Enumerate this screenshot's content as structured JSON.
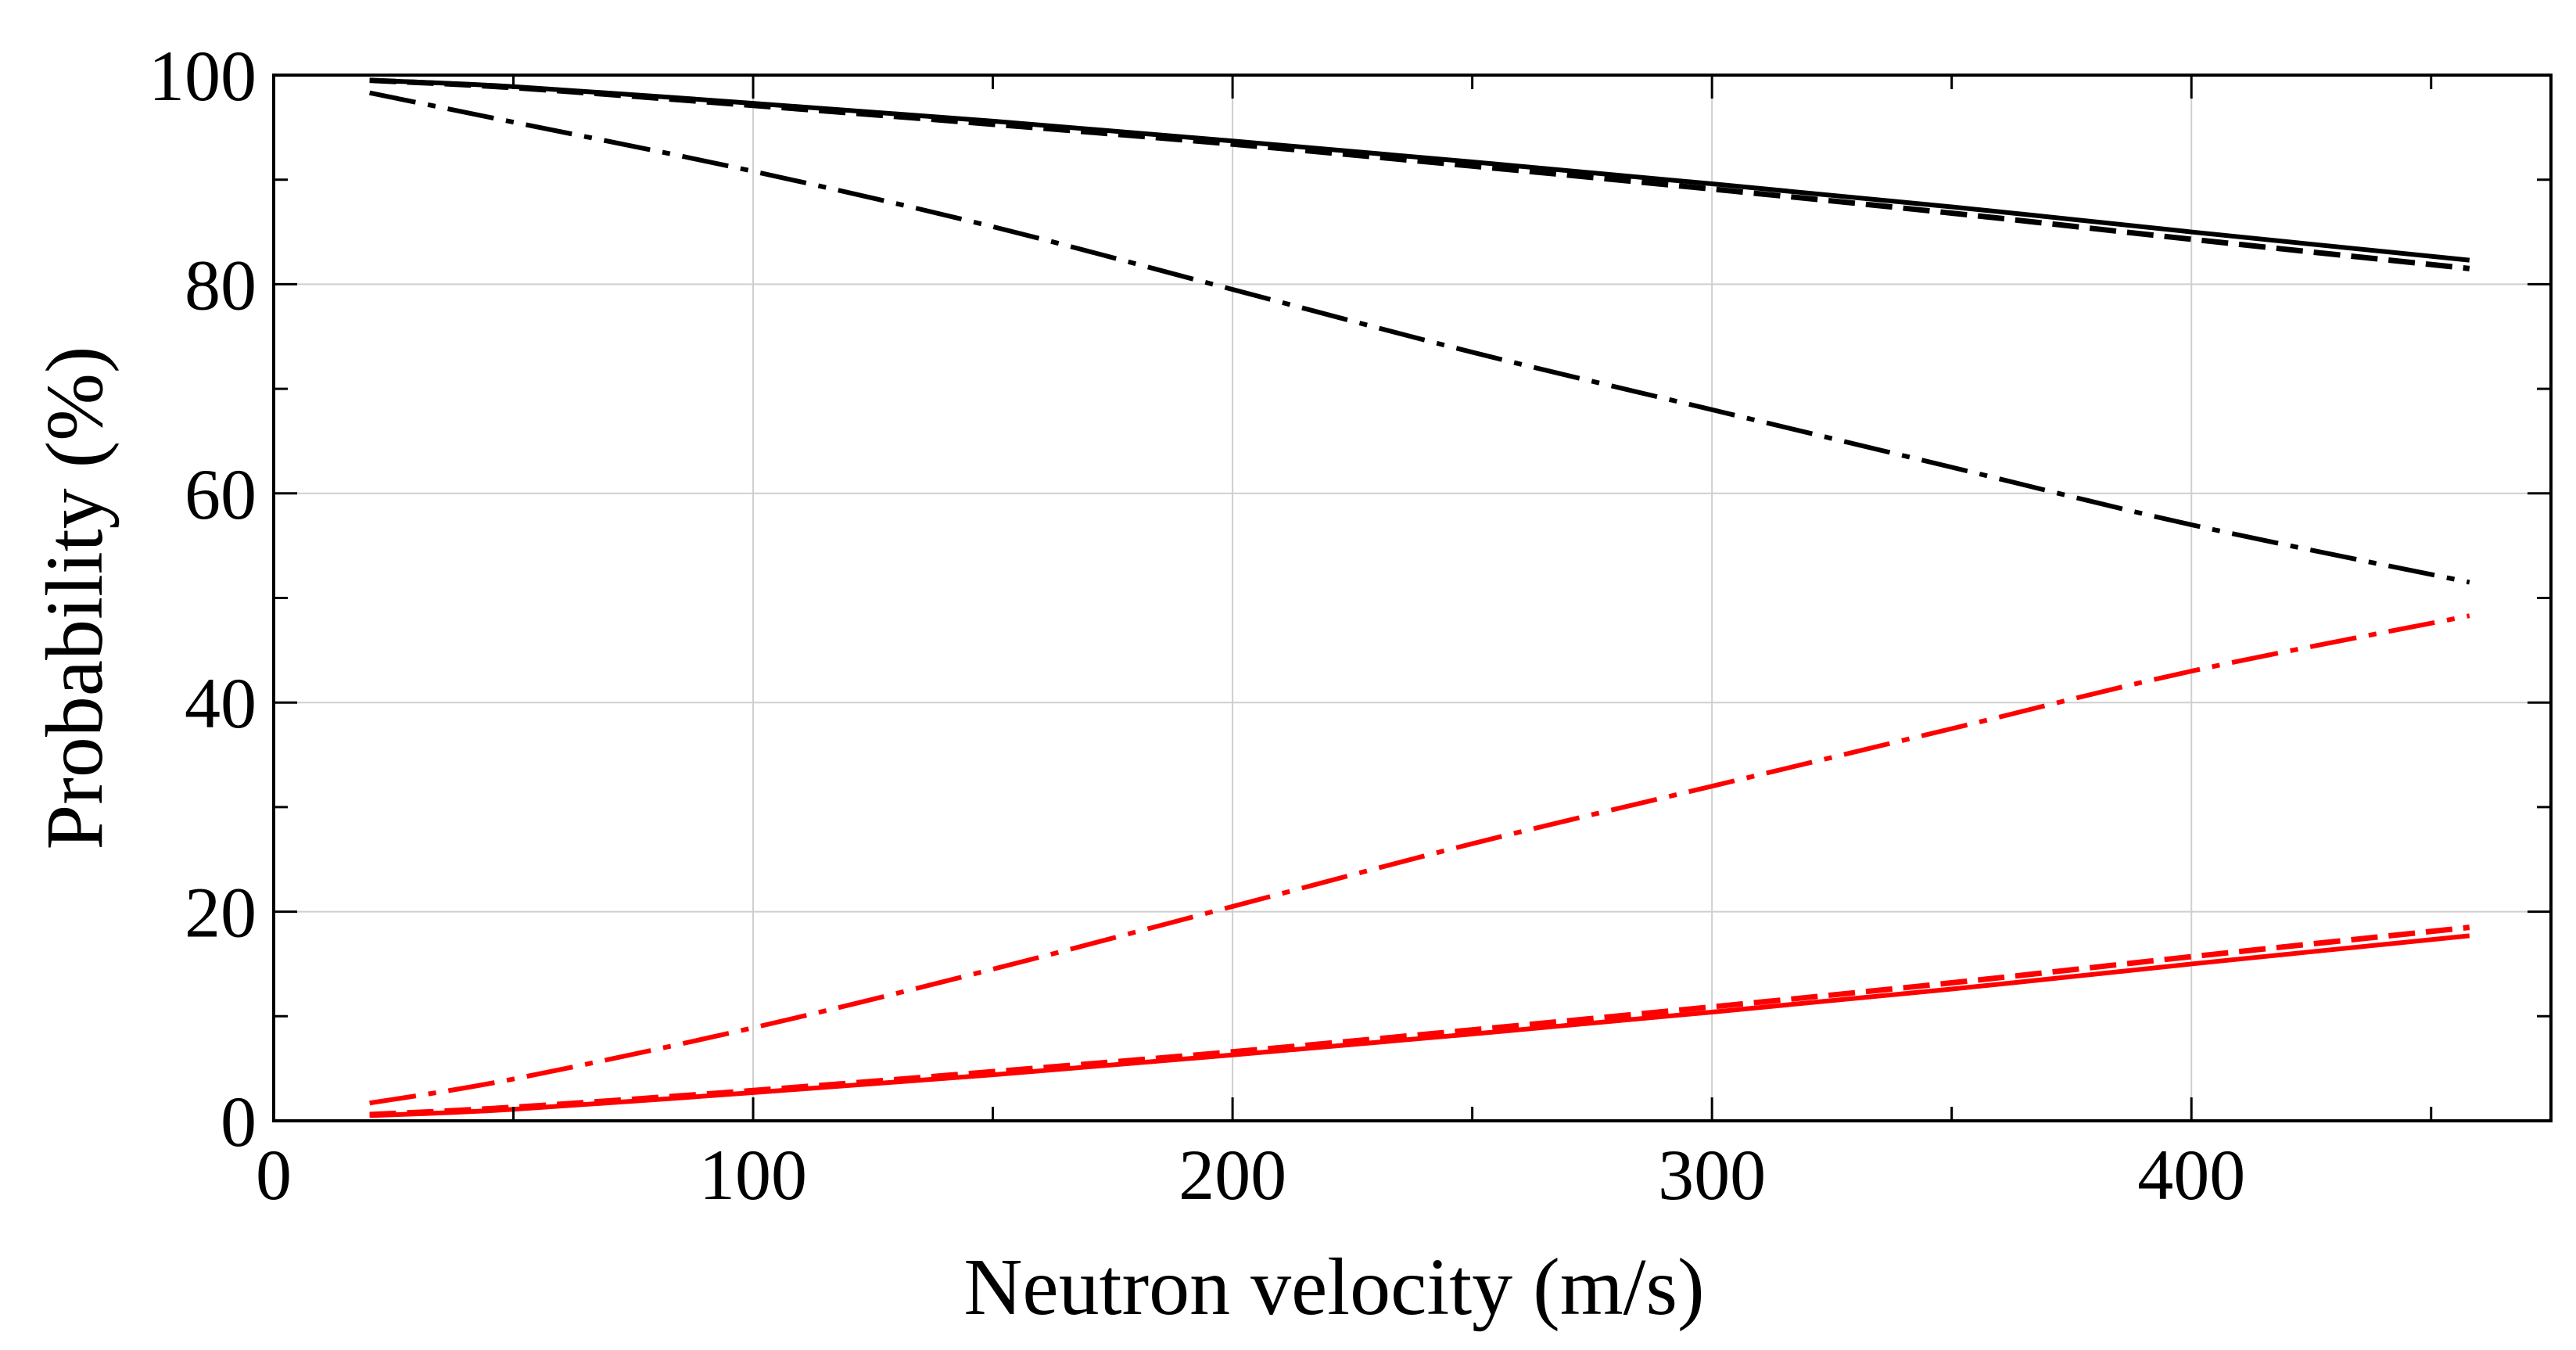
{
  "chart_data": {
    "type": "line",
    "title": "",
    "xlabel": "Neutron velocity (m/s)",
    "ylabel": "Probability (%)",
    "xlim": [
      0,
      475
    ],
    "ylim": [
      0,
      100
    ],
    "xticks": [
      0,
      100,
      200,
      300,
      400
    ],
    "yticks": [
      0,
      20,
      40,
      60,
      80,
      100
    ],
    "xtick_labels": [
      "0",
      "100",
      "200",
      "300",
      "400"
    ],
    "ytick_labels": [
      "0",
      "20",
      "40",
      "60",
      "80",
      "100"
    ],
    "grid": true,
    "series": [
      {
        "name": "black-solid",
        "color": "#000000",
        "dash": "solid",
        "x": [
          20,
          50,
          100,
          150,
          200,
          250,
          300,
          350,
          400,
          458
        ],
        "y": [
          99.5,
          98.9,
          97.3,
          95.6,
          93.7,
          91.7,
          89.6,
          87.4,
          85.0,
          82.3
        ]
      },
      {
        "name": "black-dashed",
        "color": "#000000",
        "dash": "dashed",
        "x": [
          20,
          50,
          100,
          150,
          200,
          250,
          300,
          350,
          400,
          458
        ],
        "y": [
          99.5,
          98.8,
          97.1,
          95.3,
          93.4,
          91.3,
          89.1,
          86.8,
          84.3,
          81.5
        ]
      },
      {
        "name": "black-dashdot",
        "color": "#000000",
        "dash": "dashdot",
        "x": [
          20,
          50,
          100,
          150,
          200,
          250,
          300,
          350,
          400,
          458
        ],
        "y": [
          98.3,
          95.5,
          90.8,
          85.5,
          79.5,
          73.5,
          68.0,
          62.5,
          57.0,
          51.5
        ]
      },
      {
        "name": "red-dashdot",
        "color": "#ff0000",
        "dash": "dashdot",
        "x": [
          20,
          50,
          100,
          150,
          200,
          250,
          300,
          350,
          400,
          458
        ],
        "y": [
          1.7,
          4.0,
          8.9,
          14.5,
          20.5,
          26.5,
          32.0,
          37.5,
          43.0,
          48.3
        ]
      },
      {
        "name": "red-dashed",
        "color": "#ff0000",
        "dash": "dashed",
        "x": [
          20,
          50,
          100,
          150,
          200,
          250,
          300,
          350,
          400,
          458
        ],
        "y": [
          0.6,
          1.3,
          2.9,
          4.7,
          6.6,
          8.7,
          10.9,
          13.2,
          15.7,
          18.5
        ]
      },
      {
        "name": "red-solid",
        "color": "#ff0000",
        "dash": "solid",
        "x": [
          20,
          50,
          100,
          150,
          200,
          250,
          300,
          350,
          400,
          458
        ],
        "y": [
          0.5,
          1.1,
          2.7,
          4.4,
          6.3,
          8.3,
          10.4,
          12.6,
          15.0,
          17.7
        ]
      }
    ]
  }
}
